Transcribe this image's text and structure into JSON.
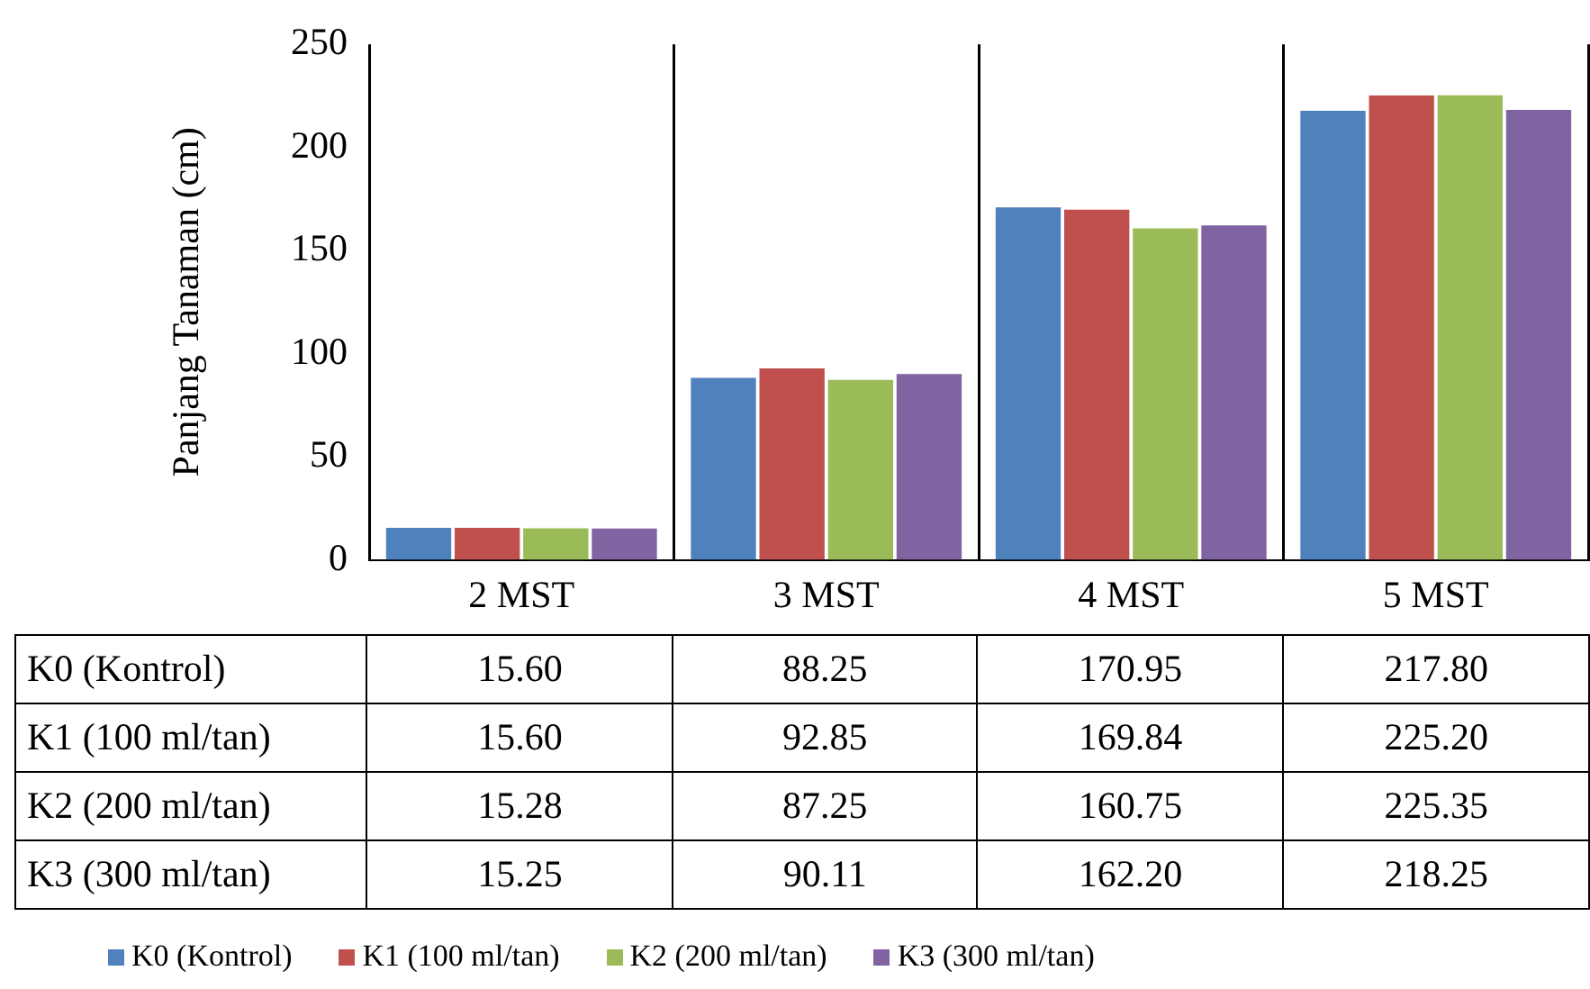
{
  "chart_data": {
    "type": "bar",
    "ylabel": "Panjang Tanaman (cm)",
    "categories": [
      "2 MST",
      "3 MST",
      "4 MST",
      "5 MST"
    ],
    "series": [
      {
        "name": "K0 (Kontrol)",
        "color": "#4f81bd",
        "values": [
          15.6,
          88.25,
          170.95,
          217.8
        ],
        "value_labels": [
          "15.60",
          "88.25",
          "170.95",
          "217.80"
        ]
      },
      {
        "name": "K1 (100 ml/tan)",
        "color": "#c0504d",
        "values": [
          15.6,
          92.85,
          169.84,
          225.2
        ],
        "value_labels": [
          "15.60",
          "92.85",
          "169.84",
          "225.20"
        ]
      },
      {
        "name": "K2 (200 ml/tan)",
        "color": "#9bbb59",
        "values": [
          15.28,
          87.25,
          160.75,
          225.35
        ],
        "value_labels": [
          "15.28",
          "87.25",
          "160.75",
          "225.35"
        ]
      },
      {
        "name": "K3 (300 ml/tan)",
        "color": "#8064a2",
        "values": [
          15.25,
          90.11,
          162.2,
          218.25
        ],
        "value_labels": [
          "15.25",
          "90.11",
          "162.20",
          "218.25"
        ]
      }
    ],
    "ylim": [
      0,
      250
    ],
    "yticks": [
      0,
      50,
      100,
      150,
      200,
      250
    ],
    "grid": "x",
    "legend": "bottom"
  }
}
